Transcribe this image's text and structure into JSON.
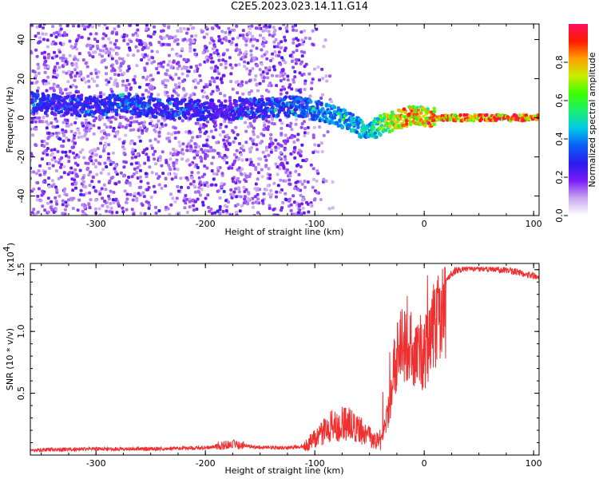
{
  "title": "C2E5.2023.023.14.11.G14",
  "chart_data": [
    {
      "type": "heatmap",
      "xlabel": "Height of straight line (km)",
      "ylabel": "Frequency (Hz)",
      "xlim": [
        -360,
        105
      ],
      "ylim": [
        -50,
        48
      ],
      "x_ticks": [
        "-300",
        "-200",
        "-100",
        "0",
        "100"
      ],
      "x_tick_values": [
        -300,
        -200,
        -100,
        0,
        100
      ],
      "y_ticks": [
        "-40",
        "-20",
        "0",
        "20",
        "40"
      ],
      "y_tick_values": [
        -40,
        -20,
        0,
        20,
        40
      ],
      "colorbar": {
        "label": "Normalized spectral amplitude",
        "range": [
          0,
          1
        ],
        "ticks": [
          "0.0",
          "0.2",
          "0.4",
          "0.6",
          "0.8"
        ],
        "tick_values": [
          0.0,
          0.2,
          0.4,
          0.6,
          0.8
        ],
        "colors": [
          "#ffffff",
          "#c9a8f2",
          "#7a1cf5",
          "#2a1cf0",
          "#0b5cf5",
          "#00c8ea",
          "#1aee70",
          "#39ff00",
          "#c8ee00",
          "#ffa000",
          "#ff1a00",
          "#ff1060"
        ]
      },
      "ridge": {
        "x": [
          -355,
          -330,
          -300,
          -270,
          -240,
          -210,
          -180,
          -150,
          -120,
          -100,
          -80,
          -60,
          -50,
          -40,
          -30,
          -20,
          -10,
          0,
          10,
          50,
          100
        ],
        "y": [
          8,
          6,
          6,
          7,
          5,
          4,
          4,
          5,
          6,
          4,
          1,
          -5,
          -7,
          -4,
          -2,
          0,
          1,
          1,
          0,
          0,
          0
        ],
        "amp": [
          0.3,
          0.28,
          0.28,
          0.35,
          0.27,
          0.27,
          0.25,
          0.3,
          0.35,
          0.4,
          0.42,
          0.45,
          0.45,
          0.6,
          0.75,
          0.8,
          0.8,
          0.75,
          0.85,
          0.9,
          0.9
        ]
      }
    },
    {
      "type": "line",
      "xlabel": "Height of straight line (km)",
      "ylabel": "SNR (10 * v/v)",
      "exponent_label": "(x10",
      "exponent": "4",
      "xlim": [
        -360,
        105
      ],
      "ylim": [
        0,
        1.55
      ],
      "x_ticks": [
        "-300",
        "-200",
        "-100",
        "0",
        "100"
      ],
      "x_tick_values": [
        -300,
        -200,
        -100,
        0,
        100
      ],
      "y_ticks": [
        "0.5",
        "1.0",
        "1.5"
      ],
      "y_tick_values": [
        0.5,
        1.0,
        1.5
      ],
      "color": "#f03030",
      "envelope": {
        "x": [
          -360,
          -300,
          -250,
          -200,
          -175,
          -150,
          -125,
          -110,
          -100,
          -85,
          -70,
          -55,
          -45,
          -40,
          -35,
          -32,
          -30,
          -28,
          -25,
          -20,
          -15,
          -10,
          -5,
          0,
          5,
          10,
          15,
          20,
          25,
          30,
          40,
          60,
          80,
          100,
          105
        ],
        "y": [
          0.04,
          0.05,
          0.05,
          0.06,
          0.09,
          0.06,
          0.06,
          0.07,
          0.15,
          0.25,
          0.28,
          0.2,
          0.12,
          0.15,
          0.3,
          0.45,
          0.6,
          0.8,
          0.95,
          1.05,
          1.05,
          1.0,
          0.95,
          0.95,
          1.1,
          1.25,
          1.35,
          1.42,
          1.47,
          1.5,
          1.51,
          1.51,
          1.49,
          1.45,
          1.44
        ]
      }
    }
  ]
}
